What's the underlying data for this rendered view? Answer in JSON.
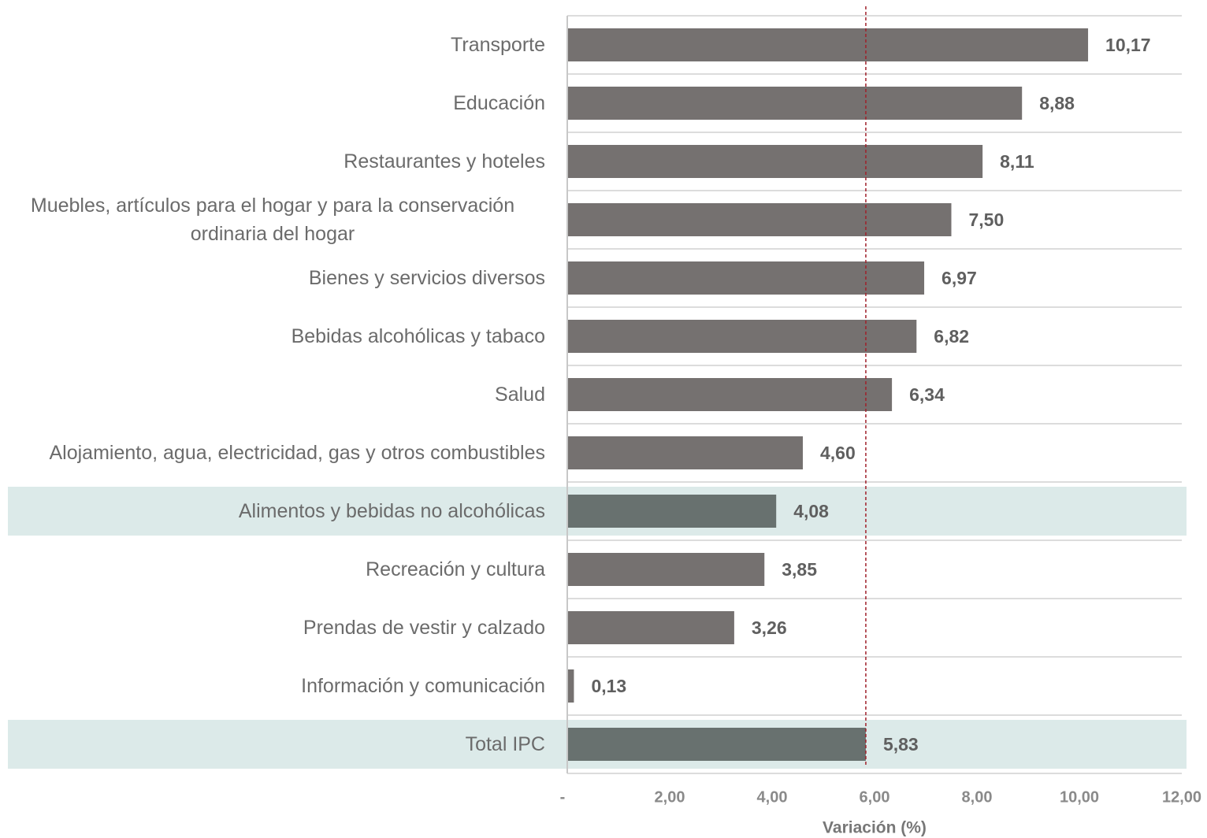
{
  "chart_data": {
    "type": "barh",
    "categories": [
      "Transporte",
      "Educación",
      "Restaurantes y hoteles",
      "Muebles, artículos para el hogar y para la conservación ordinaria del hogar",
      "Bienes y servicios diversos",
      "Bebidas alcohólicas y tabaco",
      "Salud",
      "Alojamiento, agua, electricidad, gas y otros combustibles",
      "Alimentos y bebidas no alcohólicas",
      "Recreación y cultura",
      "Prendas de vestir y calzado",
      "Información y comunicación",
      "Total IPC"
    ],
    "values": [
      10.17,
      8.88,
      8.11,
      7.5,
      6.97,
      6.82,
      6.34,
      4.6,
      4.08,
      3.85,
      3.26,
      0.13,
      5.83
    ],
    "value_labels": [
      "10,17",
      "8,88",
      "8,11",
      "7,50",
      "6,97",
      "6,82",
      "6,34",
      "4,60",
      "4,08",
      "3,85",
      "3,26",
      "0,13",
      "5,83"
    ],
    "colors": [
      "#757170",
      "#757170",
      "#757170",
      "#757170",
      "#757170",
      "#757170",
      "#757170",
      "#757170",
      "#68716f",
      "#757170",
      "#757170",
      "#757170",
      "#68716f"
    ],
    "row_highlight": [
      false,
      false,
      false,
      false,
      false,
      false,
      false,
      false,
      true,
      false,
      false,
      false,
      true
    ],
    "highlight_color": "#dceae9",
    "xlim": [
      0,
      12
    ],
    "xticks": [
      {
        "value": 0,
        "label": "-"
      },
      {
        "value": 2,
        "label": "2,00"
      },
      {
        "value": 4,
        "label": "4,00"
      },
      {
        "value": 6,
        "label": "6,00"
      },
      {
        "value": 8,
        "label": "8,00"
      },
      {
        "value": 10,
        "label": "10,00"
      },
      {
        "value": 12,
        "label": "12,00"
      }
    ],
    "x_label": "Variación (%)",
    "reference_line": {
      "value": 5.83,
      "color": "#a0202a"
    }
  }
}
